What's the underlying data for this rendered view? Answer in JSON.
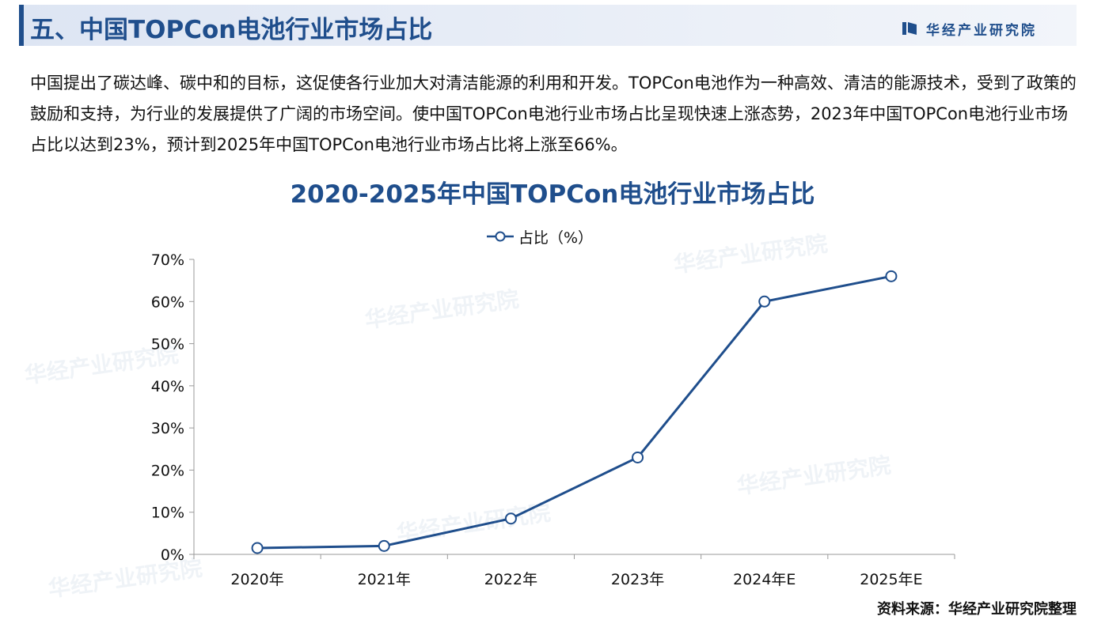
{
  "header": {
    "title": "五、中国TOPCon电池行业市场占比",
    "brand_name": "华经产业研究院"
  },
  "intro_text": "中国提出了碳达峰、碳中和的目标，这促使各行业加大对清洁能源的利用和开发。TOPCon电池作为一种高效、清洁的能源技术，受到了政策的鼓励和支持，为行业的发展提供了广阔的市场空间。使中国TOPCon电池行业市场占比呈现快速上涨态势，2023年中国TOPCon电池行业市场占比以达到23%，预计到2025年中国TOPCon电池行业市场占比将上涨至66%。",
  "watermark_text": "华经产业研究院",
  "source_text": "资料来源：华经产业研究院整理",
  "colors": {
    "brand": "#1f4e8c",
    "series": "#1f4e8c",
    "axis": "#9a9a9a"
  },
  "chart_data": {
    "type": "line",
    "title": "2020-2025年中国TOPCon电池行业市场占比",
    "categories": [
      "2020年",
      "2021年",
      "2022年",
      "2023年",
      "2024年E",
      "2025年E"
    ],
    "series": [
      {
        "name": "占比（%）",
        "values": [
          1.5,
          2,
          8.5,
          23,
          60,
          66
        ]
      }
    ],
    "y_ticks": [
      "0%",
      "10%",
      "20%",
      "30%",
      "40%",
      "50%",
      "60%",
      "70%"
    ],
    "ylim": [
      0,
      70
    ],
    "xlabel": "",
    "ylabel": "",
    "grid": false,
    "legend_position": "top-center",
    "marker": "hollow-circle"
  }
}
